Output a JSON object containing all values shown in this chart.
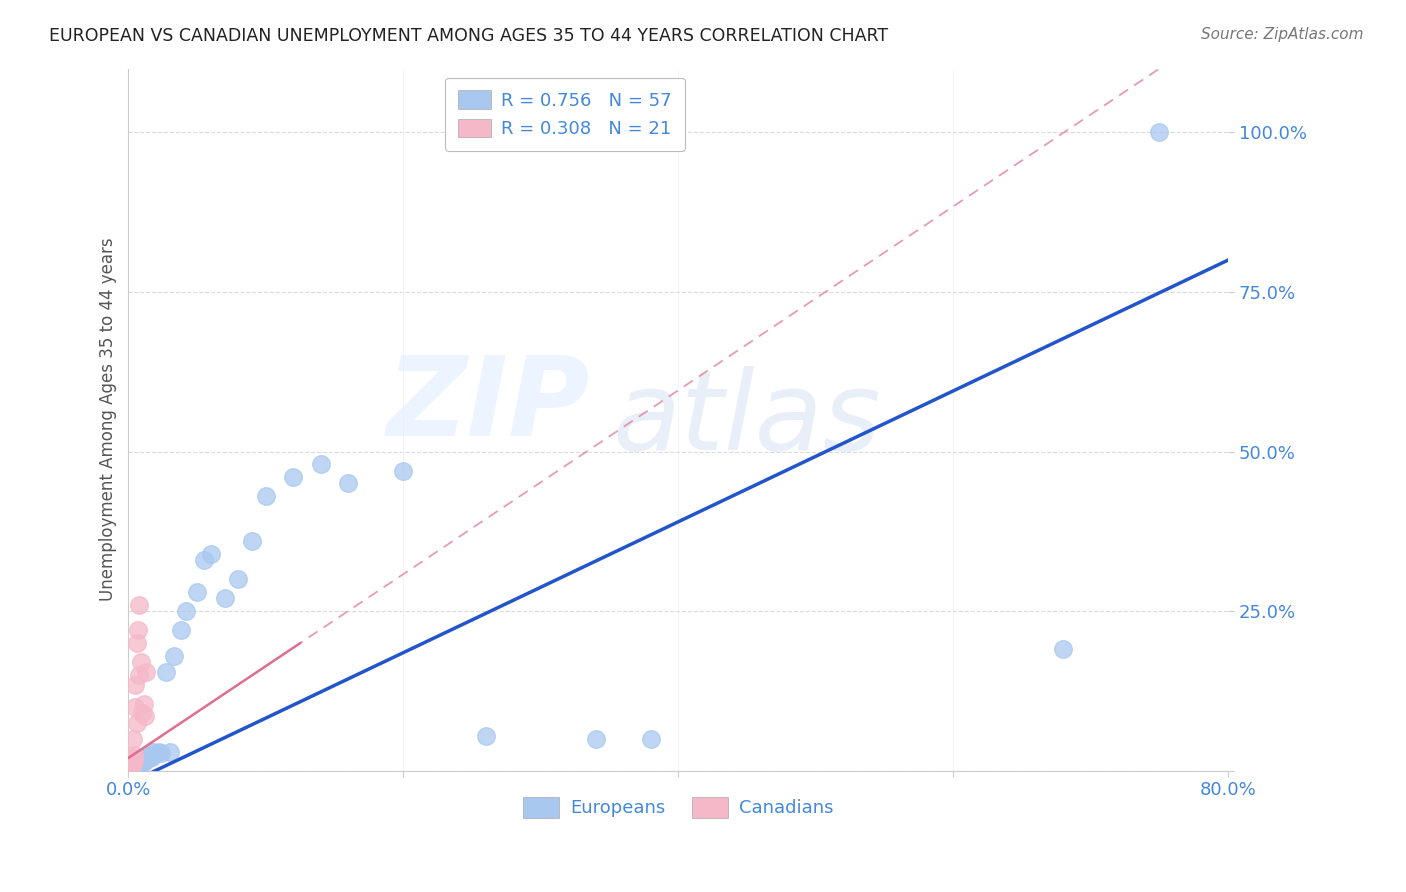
{
  "title": "EUROPEAN VS CANADIAN UNEMPLOYMENT AMONG AGES 35 TO 44 YEARS CORRELATION CHART",
  "source": "Source: ZipAtlas.com",
  "ylabel": "Unemployment Among Ages 35 to 44 years",
  "xlim": [
    0.0,
    0.8
  ],
  "ylim": [
    0.0,
    1.1
  ],
  "ytick_positions": [
    0.0,
    0.25,
    0.5,
    0.75,
    1.0
  ],
  "ytick_labels": [
    "",
    "25.0%",
    "50.0%",
    "75.0%",
    "100.0%"
  ],
  "xtick_positions": [
    0.0,
    0.2,
    0.4,
    0.6,
    0.8
  ],
  "xticklabels": [
    "0.0%",
    "",
    "",
    "",
    "80.0%"
  ],
  "R_european": 0.756,
  "N_european": 57,
  "R_canadian": 0.308,
  "N_canadian": 21,
  "european_color": "#a8c8f0",
  "canadian_color": "#f5b8c8",
  "european_line_color": "#2255cc",
  "canadian_line_color": "#e07090",
  "background_color": "#ffffff",
  "grid_color": "#cccccc",
  "title_color": "#222222",
  "axis_label_color": "#555555",
  "tick_label_color": "#4488dd",
  "legend_color": "#4488dd",
  "eu_x": [
    0.001,
    0.001,
    0.001,
    0.002,
    0.002,
    0.002,
    0.002,
    0.003,
    0.003,
    0.003,
    0.004,
    0.004,
    0.004,
    0.005,
    0.005,
    0.005,
    0.006,
    0.006,
    0.007,
    0.007,
    0.008,
    0.008,
    0.009,
    0.01,
    0.01,
    0.011,
    0.012,
    0.013,
    0.014,
    0.015,
    0.016,
    0.017,
    0.018,
    0.02,
    0.022,
    0.024,
    0.027,
    0.03,
    0.033,
    0.038,
    0.042,
    0.05,
    0.055,
    0.06,
    0.07,
    0.08,
    0.09,
    0.1,
    0.12,
    0.14,
    0.16,
    0.2,
    0.26,
    0.34,
    0.38,
    0.68,
    0.75
  ],
  "eu_y": [
    0.004,
    0.005,
    0.006,
    0.005,
    0.007,
    0.008,
    0.01,
    0.006,
    0.008,
    0.012,
    0.005,
    0.008,
    0.01,
    0.007,
    0.01,
    0.015,
    0.009,
    0.012,
    0.01,
    0.015,
    0.012,
    0.018,
    0.015,
    0.01,
    0.018,
    0.02,
    0.015,
    0.018,
    0.022,
    0.02,
    0.025,
    0.022,
    0.03,
    0.028,
    0.03,
    0.028,
    0.155,
    0.03,
    0.18,
    0.22,
    0.25,
    0.28,
    0.33,
    0.34,
    0.27,
    0.3,
    0.36,
    0.43,
    0.46,
    0.48,
    0.45,
    0.47,
    0.055,
    0.05,
    0.05,
    0.19,
    1.0
  ],
  "ca_x": [
    0.001,
    0.001,
    0.002,
    0.002,
    0.003,
    0.003,
    0.003,
    0.004,
    0.004,
    0.005,
    0.005,
    0.006,
    0.006,
    0.007,
    0.008,
    0.008,
    0.009,
    0.01,
    0.011,
    0.012,
    0.013
  ],
  "ca_y": [
    0.005,
    0.01,
    0.008,
    0.015,
    0.01,
    0.02,
    0.05,
    0.015,
    0.025,
    0.1,
    0.135,
    0.075,
    0.2,
    0.22,
    0.15,
    0.26,
    0.17,
    0.09,
    0.105,
    0.085,
    0.155
  ],
  "eu_line_x0": 0.0,
  "eu_line_y0": -0.02,
  "eu_line_x1": 0.8,
  "eu_line_y1": 0.8,
  "ca_line_x0": 0.0,
  "ca_line_y0": 0.02,
  "ca_line_x1": 0.125,
  "ca_line_y1": 0.2
}
